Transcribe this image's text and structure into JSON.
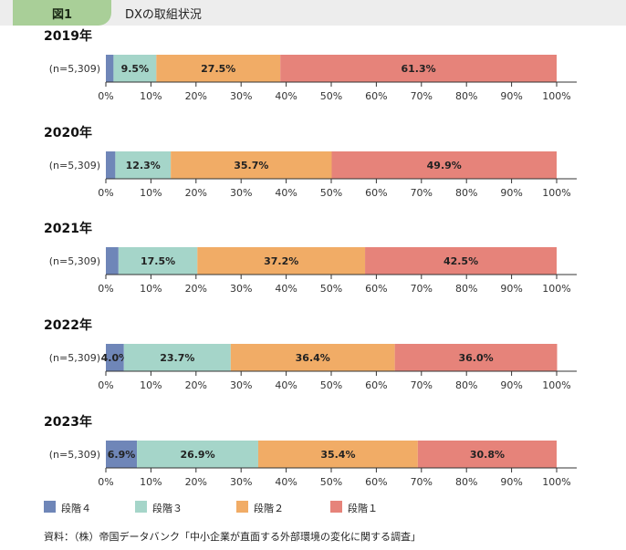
{
  "header": {
    "figure_label": "図1",
    "title": "DXの取組状況"
  },
  "colors": {
    "stage4": "#6f86b8",
    "stage3": "#a5d5c9",
    "stage2": "#f1ac66",
    "stage1": "#e6837a"
  },
  "chart_data": {
    "type": "bar",
    "orientation": "horizontal",
    "stacked": true,
    "xlim": [
      0,
      100
    ],
    "x_ticks": [
      "0%",
      "10%",
      "20%",
      "30%",
      "40%",
      "50%",
      "60%",
      "70%",
      "80%",
      "90%",
      "100%"
    ],
    "series_names": [
      "段階4",
      "段階3",
      "段階2",
      "段階1"
    ],
    "panels": [
      {
        "year": "2019年",
        "n": "(n=5,309)",
        "values": [
          1.7,
          9.5,
          27.5,
          61.3
        ],
        "labels": [
          "",
          "9.5%",
          "27.5%",
          "61.3%"
        ]
      },
      {
        "year": "2020年",
        "n": "(n=5,309)",
        "values": [
          2.1,
          12.3,
          35.7,
          49.9
        ],
        "labels": [
          "",
          "12.3%",
          "35.7%",
          "49.9%"
        ]
      },
      {
        "year": "2021年",
        "n": "(n=5,309)",
        "values": [
          2.8,
          17.5,
          37.2,
          42.5
        ],
        "labels": [
          "",
          "17.5%",
          "37.2%",
          "42.5%"
        ]
      },
      {
        "year": "2022年",
        "n": "(n=5,309)",
        "values": [
          4.0,
          23.7,
          36.4,
          36.0
        ],
        "labels": [
          "4.0%",
          "23.7%",
          "36.4%",
          "36.0%"
        ]
      },
      {
        "year": "2023年",
        "n": "(n=5,309)",
        "values": [
          6.9,
          26.9,
          35.4,
          30.8
        ],
        "labels": [
          "6.9%",
          "26.9%",
          "35.4%",
          "30.8%"
        ]
      }
    ],
    "legend": [
      {
        "label": "段階４",
        "key": "stage4"
      },
      {
        "label": "段階３",
        "key": "stage3"
      },
      {
        "label": "段階２",
        "key": "stage2"
      },
      {
        "label": "段階１",
        "key": "stage1"
      }
    ]
  },
  "source": "資料：（株）帝国データバンク「中小企業が直面する外部環境の変化に関する調査」"
}
